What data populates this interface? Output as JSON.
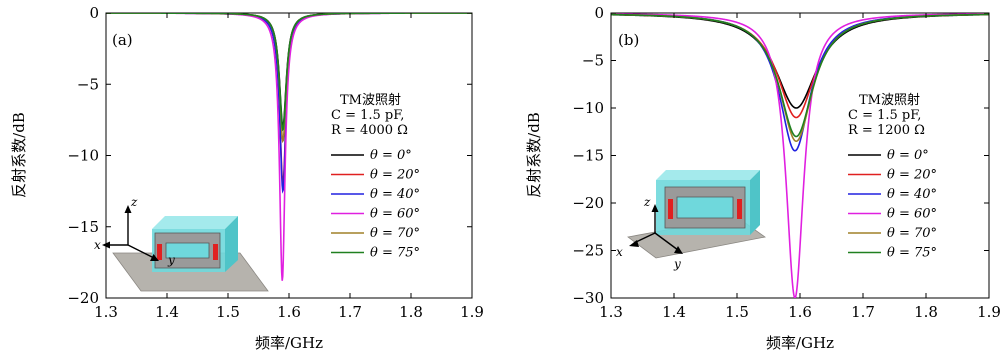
{
  "chart_data": [
    {
      "type": "line",
      "panel_label": "(a)",
      "xlabel": "频率/GHz",
      "ylabel": "反射系数/dB",
      "xlim": [
        1.3,
        1.9
      ],
      "ylim": [
        -20,
        0
      ],
      "xticks": [
        1.3,
        1.4,
        1.5,
        1.6,
        1.7,
        1.8,
        1.9
      ],
      "xtick_labels": [
        "1.3",
        "1.4",
        "1.5",
        "1.6",
        "1.7",
        "1.8",
        "1.9"
      ],
      "yticks": [
        0,
        -5,
        -10,
        -15,
        -20
      ],
      "ytick_labels": [
        "0",
        "−5",
        "−10",
        "−15",
        "−20"
      ],
      "annotation_lines": [
        "TM波照射",
        "C = 1.5 pF,",
        "R = 4000 Ω"
      ],
      "legend_position": "right",
      "series": [
        {
          "name": "θ = 0°",
          "color": "#000000",
          "center": 1.59,
          "depth": -8.0,
          "width": 0.0068
        },
        {
          "name": "θ = 20°",
          "color": "#e02020",
          "center": 1.59,
          "depth": -12.0,
          "width": 0.0063
        },
        {
          "name": "θ = 40°",
          "color": "#2020e0",
          "center": 1.59,
          "depth": -12.5,
          "width": 0.0062
        },
        {
          "name": "θ = 60°",
          "color": "#e020e0",
          "center": 1.589,
          "depth": -18.8,
          "width": 0.0055
        },
        {
          "name": "θ = 70°",
          "color": "#a08028",
          "center": 1.59,
          "depth": -9.0,
          "width": 0.0065
        },
        {
          "name": "θ = 75°",
          "color": "#208020",
          "center": 1.59,
          "depth": -8.2,
          "width": 0.0068
        }
      ]
    },
    {
      "type": "line",
      "panel_label": "(b)",
      "xlabel": "频率/GHz",
      "ylabel": "反射系数/dB",
      "xlim": [
        1.3,
        1.9
      ],
      "ylim": [
        -30,
        0
      ],
      "xticks": [
        1.3,
        1.4,
        1.5,
        1.6,
        1.7,
        1.8,
        1.9
      ],
      "xtick_labels": [
        "1.3",
        "1.4",
        "1.5",
        "1.6",
        "1.7",
        "1.8",
        "1.9"
      ],
      "yticks": [
        0,
        -5,
        -10,
        -15,
        -20,
        -25,
        -30
      ],
      "ytick_labels": [
        "0",
        "−5",
        "−10",
        "−15",
        "−20",
        "−25",
        "−30"
      ],
      "annotation_lines": [
        "TM波照射",
        "C = 1.5 pF,",
        "R = 1200 Ω"
      ],
      "legend_position": "right",
      "series": [
        {
          "name": "θ = 0°",
          "color": "#000000",
          "center": 1.594,
          "depth": -10.0,
          "width": 0.04
        },
        {
          "name": "θ = 20°",
          "color": "#e02020",
          "center": 1.594,
          "depth": -11.0,
          "width": 0.036
        },
        {
          "name": "θ = 40°",
          "color": "#2020e0",
          "center": 1.592,
          "depth": -14.5,
          "width": 0.03
        },
        {
          "name": "θ = 60°",
          "color": "#e020e0",
          "center": 1.592,
          "depth": -30.0,
          "width": 0.017
        },
        {
          "name": "θ = 70°",
          "color": "#a08028",
          "center": 1.594,
          "depth": -13.5,
          "width": 0.032
        },
        {
          "name": "θ = 75°",
          "color": "#208020",
          "center": 1.594,
          "depth": -13.0,
          "width": 0.033
        }
      ]
    }
  ],
  "inset_axes": {
    "x": "x",
    "y": "y",
    "z": "z"
  }
}
